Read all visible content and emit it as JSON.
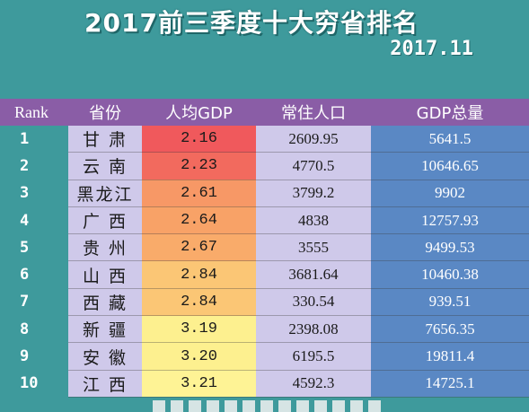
{
  "header": {
    "title": "2017前三季度十大穷省排名",
    "date": "2017.11"
  },
  "table": {
    "columns": [
      "Rank",
      "省份",
      "人均GDP",
      "常住人口",
      "GDP总量"
    ],
    "rows": [
      {
        "rank": "1",
        "province": "甘 肃",
        "per_capita_gdp": "2.16",
        "population": "2609.95",
        "gdp_total": "5641.5",
        "color": "#f0595c"
      },
      {
        "rank": "2",
        "province": "云 南",
        "per_capita_gdp": "2.23",
        "population": "4770.5",
        "gdp_total": "10646.65",
        "color": "#f26a5e"
      },
      {
        "rank": "3",
        "province": "黑龙江",
        "per_capita_gdp": "2.61",
        "population": "3799.2",
        "gdp_total": "9902",
        "color": "#f79866"
      },
      {
        "rank": "4",
        "province": "广 西",
        "per_capita_gdp": "2.64",
        "population": "4838",
        "gdp_total": "12757.93",
        "color": "#f8a267"
      },
      {
        "rank": "5",
        "province": "贵 州",
        "per_capita_gdp": "2.67",
        "population": "3555",
        "gdp_total": "9499.53",
        "color": "#f9ab6a"
      },
      {
        "rank": "6",
        "province": "山 西",
        "per_capita_gdp": "2.84",
        "population": "3681.64",
        "gdp_total": "10460.38",
        "color": "#fbc675"
      },
      {
        "rank": "7",
        "province": "西 藏",
        "per_capita_gdp": "2.84",
        "population": "330.54",
        "gdp_total": "939.51",
        "color": "#fbc675"
      },
      {
        "rank": "8",
        "province": "新 疆",
        "per_capita_gdp": "3.19",
        "population": "2398.08",
        "gdp_total": "7656.35",
        "color": "#fdf08f"
      },
      {
        "rank": "9",
        "province": "安 徽",
        "per_capita_gdp": "3.20",
        "population": "6195.5",
        "gdp_total": "19811.4",
        "color": "#fdf08f"
      },
      {
        "rank": "10",
        "province": "江 西",
        "per_capita_gdp": "3.21",
        "population": "4592.3",
        "gdp_total": "14725.1",
        "color": "#fef395"
      }
    ]
  }
}
